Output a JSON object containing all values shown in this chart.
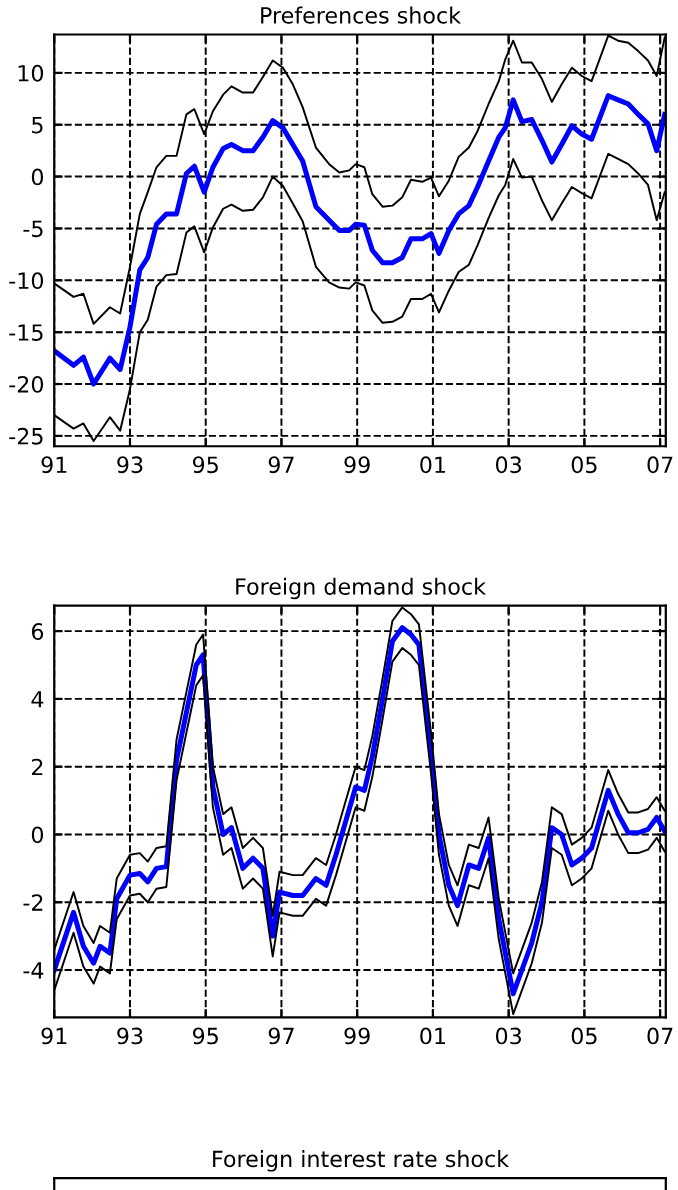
{
  "chart_data": [
    {
      "type": "line",
      "title": "Preferences shock",
      "grid": true,
      "x": [
        1991.0,
        1991.51,
        1991.77,
        1992.04,
        1992.47,
        1992.74,
        1993.0,
        1993.26,
        1993.47,
        1993.7,
        1993.96,
        1994.23,
        1994.49,
        1994.7,
        1994.96,
        1995.19,
        1995.46,
        1995.68,
        1995.98,
        1996.25,
        1996.51,
        1996.77,
        1997.04,
        1997.3,
        1997.56,
        1997.91,
        1998.26,
        1998.53,
        1998.79,
        1998.96,
        1999.19,
        1999.4,
        1999.67,
        1999.93,
        2000.19,
        2000.42,
        2000.72,
        2000.95,
        2001.16,
        2001.42,
        2001.68,
        2001.95,
        2002.18,
        2002.47,
        2002.74,
        2002.91,
        2003.12,
        2003.35,
        2003.61,
        2003.88,
        2004.14,
        2004.4,
        2004.67,
        2004.93,
        2005.19,
        2005.63,
        2005.89,
        2006.16,
        2006.42,
        2006.68,
        2006.91,
        2007.12
      ],
      "series": [
        {
          "color": "#0000ff",
          "values": [
            -16.8,
            -18.2,
            -17.4,
            -20,
            -17.5,
            -18.6,
            -14.5,
            -9,
            -7.8,
            -4.6,
            -3.6,
            -3.6,
            0.3,
            1.0,
            -1.5,
            0.9,
            2.7,
            3.1,
            2.5,
            2.5,
            3.8,
            5.4,
            4.7,
            3.1,
            1.5,
            -2.9,
            -4.2,
            -5.2,
            -5.2,
            -4.6,
            -4.7,
            -7.1,
            -8.3,
            -8.3,
            -7.8,
            -6.0,
            -6.0,
            -5.5,
            -7.4,
            -5.2,
            -3.6,
            -2.8,
            -1.0,
            1.5,
            3.8,
            4.7,
            7.4,
            5.3,
            5.5,
            3.5,
            1.4,
            3.1,
            4.9,
            4.1,
            3.6,
            7.8,
            7.4,
            7.0,
            6.0,
            5.1,
            2.5,
            6.0
          ]
        },
        {
          "color": "#000000",
          "values": [
            -10.3,
            -11.6,
            -11.3,
            -14.2,
            -12.6,
            -13.2,
            -8.7,
            -3.6,
            -1.5,
            0.9,
            2.0,
            2.0,
            6.0,
            6.5,
            4.1,
            6.3,
            7.9,
            8.7,
            8.1,
            8.1,
            9.6,
            11.2,
            10.5,
            8.9,
            6.7,
            2.8,
            1.2,
            0.4,
            0.6,
            1.2,
            0.9,
            -1.7,
            -2.9,
            -2.8,
            -2.0,
            -0.3,
            -0.5,
            -0.1,
            -1.9,
            -0.4,
            1.9,
            2.8,
            4.4,
            7.0,
            9.2,
            11.3,
            13.1,
            11.0,
            11.0,
            9.4,
            7.2,
            8.9,
            10.5,
            9.7,
            9.2,
            13.6,
            13.1,
            12.9,
            12.1,
            11.2,
            9.7,
            13.4
          ]
        },
        {
          "color": "#000000",
          "values": [
            -23.0,
            -24.3,
            -23.8,
            -25.5,
            -23.2,
            -24.5,
            -20.5,
            -15,
            -13.8,
            -10.6,
            -9.5,
            -9.4,
            -5.4,
            -4.8,
            -7.3,
            -4.9,
            -3.1,
            -2.7,
            -3.3,
            -3.2,
            -2.0,
            0.0,
            -0.9,
            -2.6,
            -4.3,
            -8.7,
            -10.2,
            -10.7,
            -10.8,
            -10.2,
            -10.5,
            -12.9,
            -14.1,
            -14.0,
            -13.5,
            -11.8,
            -11.8,
            -11.3,
            -13.1,
            -11.0,
            -9.2,
            -8.5,
            -6.6,
            -4.0,
            -1.8,
            -0.8,
            1.7,
            -0.1,
            0.0,
            -2.3,
            -4.2,
            -2.6,
            -1.0,
            -1.6,
            -2.1,
            2.2,
            1.7,
            1.2,
            0.3,
            -0.8,
            -4.2,
            -1.5
          ]
        }
      ],
      "xlim": [
        1991,
        2007.15
      ],
      "xticks": [
        {
          "value": 1991,
          "label": "91"
        },
        {
          "value": 1993,
          "label": "93"
        },
        {
          "value": 1995,
          "label": "95"
        },
        {
          "value": 1997,
          "label": "97"
        },
        {
          "value": 1999,
          "label": "99"
        },
        {
          "value": 2001,
          "label": "01"
        },
        {
          "value": 2003,
          "label": "03"
        },
        {
          "value": 2005,
          "label": "05"
        },
        {
          "value": 2007,
          "label": "07"
        }
      ],
      "ylim": [
        -26,
        13.7
      ],
      "yticks": [
        -25,
        -20,
        -15,
        -10,
        -5,
        0,
        5,
        10
      ]
    },
    {
      "type": "line",
      "title": "Foreign demand shock",
      "grid": true,
      "x": [
        1991.0,
        1991.51,
        1991.77,
        1992.04,
        1992.21,
        1992.47,
        1992.65,
        1993.0,
        1993.26,
        1993.47,
        1993.7,
        1993.96,
        1994.23,
        1994.49,
        1994.75,
        1994.93,
        1995.19,
        1995.46,
        1995.68,
        1995.98,
        1996.25,
        1996.51,
        1996.77,
        1996.95,
        1997.3,
        1997.56,
        1997.91,
        1998.18,
        1998.44,
        1998.7,
        1998.96,
        1999.19,
        1999.4,
        1999.67,
        1999.93,
        2000.19,
        2000.42,
        2000.63,
        2000.95,
        2001.16,
        2001.42,
        2001.65,
        2001.95,
        2002.21,
        2002.47,
        2002.74,
        2003.12,
        2003.35,
        2003.61,
        2003.88,
        2004.14,
        2004.4,
        2004.67,
        2004.93,
        2005.19,
        2005.63,
        2005.89,
        2006.16,
        2006.42,
        2006.68,
        2006.91,
        2007.12
      ],
      "series": [
        {
          "color": "#0000ff",
          "values": [
            -4.0,
            -2.3,
            -3.3,
            -3.8,
            -3.3,
            -3.5,
            -1.9,
            -1.2,
            -1.15,
            -1.4,
            -1.0,
            -0.95,
            2.2,
            3.6,
            5.0,
            5.3,
            1.4,
            0.0,
            0.2,
            -1.0,
            -0.7,
            -1.0,
            -3.0,
            -1.7,
            -1.8,
            -1.8,
            -1.3,
            -1.5,
            -0.6,
            0.4,
            1.4,
            1.3,
            2.3,
            4.0,
            5.7,
            6.1,
            5.9,
            5.6,
            2.4,
            0.0,
            -1.5,
            -2.1,
            -0.9,
            -1.0,
            -0.1,
            -2.5,
            -4.7,
            -4.0,
            -3.2,
            -2.0,
            0.2,
            0.0,
            -0.9,
            -0.7,
            -0.4,
            1.3,
            0.6,
            0.05,
            0.05,
            0.15,
            0.5,
            0.1
          ]
        },
        {
          "color": "#000000",
          "values": [
            -3.4,
            -1.7,
            -2.7,
            -3.2,
            -2.7,
            -2.9,
            -1.3,
            -0.6,
            -0.55,
            -0.8,
            -0.4,
            -0.35,
            2.8,
            4.2,
            5.6,
            5.9,
            2.0,
            0.6,
            0.8,
            -0.4,
            -0.1,
            -0.4,
            -2.4,
            -1.1,
            -1.2,
            -1.2,
            -0.7,
            -0.9,
            0.0,
            1.0,
            2.0,
            1.9,
            2.9,
            4.6,
            6.3,
            6.7,
            6.5,
            6.2,
            3.0,
            0.6,
            -0.9,
            -1.5,
            -0.3,
            -0.4,
            0.5,
            -1.9,
            -4.1,
            -3.4,
            -2.6,
            -1.4,
            0.8,
            0.6,
            -0.3,
            -0.1,
            0.2,
            1.9,
            1.2,
            0.65,
            0.65,
            0.75,
            1.1,
            0.7
          ]
        },
        {
          "color": "#000000",
          "values": [
            -4.6,
            -2.9,
            -3.9,
            -4.4,
            -3.9,
            -4.1,
            -2.5,
            -1.8,
            -1.75,
            -2.0,
            -1.6,
            -1.55,
            1.6,
            3.0,
            4.4,
            4.7,
            0.8,
            -0.6,
            -0.4,
            -1.6,
            -1.3,
            -1.6,
            -3.6,
            -2.3,
            -2.4,
            -2.4,
            -1.9,
            -2.1,
            -1.2,
            -0.2,
            0.8,
            0.7,
            1.7,
            3.4,
            5.1,
            5.5,
            5.3,
            5.0,
            1.8,
            -0.6,
            -2.1,
            -2.7,
            -1.5,
            -1.6,
            -0.7,
            -3.1,
            -5.3,
            -4.6,
            -3.8,
            -2.6,
            -0.4,
            -0.6,
            -1.5,
            -1.3,
            -1.0,
            0.7,
            0.0,
            -0.55,
            -0.55,
            -0.45,
            -0.1,
            -0.5
          ]
        }
      ],
      "xlim": [
        1991,
        2007.15
      ],
      "xticks": [
        {
          "value": 1991,
          "label": "91"
        },
        {
          "value": 1993,
          "label": "93"
        },
        {
          "value": 1995,
          "label": "95"
        },
        {
          "value": 1997,
          "label": "97"
        },
        {
          "value": 1999,
          "label": "99"
        },
        {
          "value": 2001,
          "label": "01"
        },
        {
          "value": 2003,
          "label": "03"
        },
        {
          "value": 2005,
          "label": "05"
        },
        {
          "value": 2007,
          "label": "07"
        }
      ],
      "ylim": [
        -5.4,
        6.75
      ],
      "yticks": [
        -4,
        -2,
        0,
        2,
        4,
        6
      ]
    },
    {
      "type": "other",
      "title": "Foreign interest rate shock"
    }
  ]
}
